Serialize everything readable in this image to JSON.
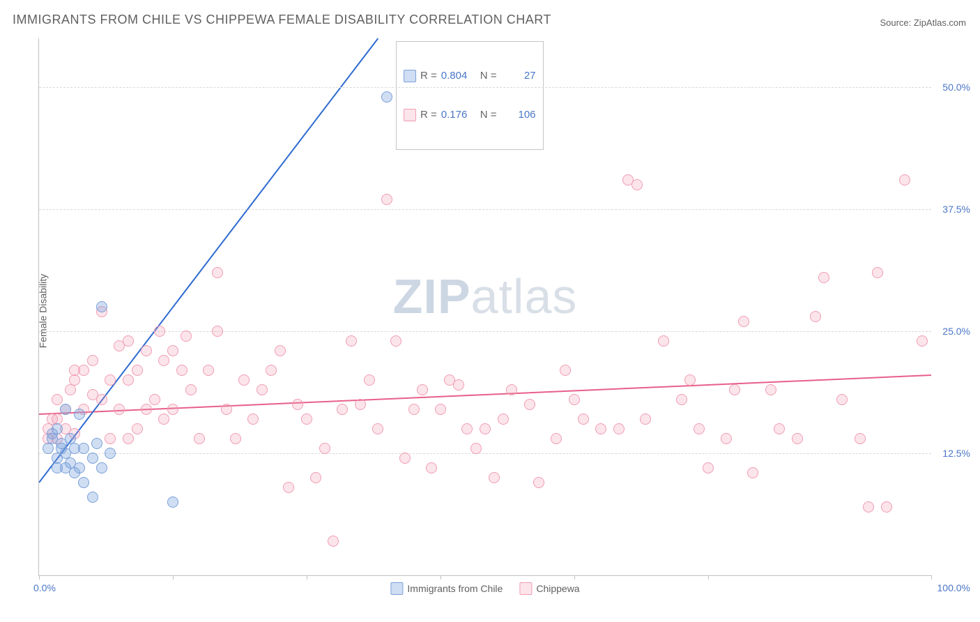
{
  "title": "IMMIGRANTS FROM CHILE VS CHIPPEWA FEMALE DISABILITY CORRELATION CHART",
  "source_label": "Source: ",
  "source_name": "ZipAtlas.com",
  "ylabel": "Female Disability",
  "watermark_a": "ZIP",
  "watermark_b": "atlas",
  "chart": {
    "type": "scatter",
    "xlim": [
      0,
      100
    ],
    "ylim": [
      0,
      55
    ],
    "x_min_label": "0.0%",
    "x_max_label": "100.0%",
    "y_ticks": [
      12.5,
      25.0,
      37.5,
      50.0
    ],
    "y_tick_labels": [
      "12.5%",
      "25.0%",
      "37.5%",
      "50.0%"
    ],
    "background_color": "#ffffff",
    "grid_color": "#d8d8d8",
    "series": [
      {
        "name": "Immigrants from Chile",
        "r": "0.804",
        "n": "27",
        "color_fill": "rgba(120,160,220,0.35)",
        "color_stroke": "#7aa0d8",
        "line_color": "#2e6bd0",
        "regression": {
          "x1": 0,
          "y1": 9.5,
          "x2": 38,
          "y2": 55
        },
        "points": [
          [
            1,
            13
          ],
          [
            1.5,
            14
          ],
          [
            1.5,
            14.5
          ],
          [
            2,
            11
          ],
          [
            2,
            12
          ],
          [
            2,
            15
          ],
          [
            2.5,
            13
          ],
          [
            2.5,
            13.5
          ],
          [
            3,
            11
          ],
          [
            3,
            12.5
          ],
          [
            3,
            17
          ],
          [
            3.5,
            11.5
          ],
          [
            3.5,
            14
          ],
          [
            4,
            10.5
          ],
          [
            4,
            13
          ],
          [
            4.5,
            11
          ],
          [
            4.5,
            16.5
          ],
          [
            5,
            9.5
          ],
          [
            5,
            13
          ],
          [
            6,
            8
          ],
          [
            6,
            12
          ],
          [
            6.5,
            13.5
          ],
          [
            7,
            11
          ],
          [
            7,
            27.5
          ],
          [
            8,
            12.5
          ],
          [
            15,
            7.5
          ],
          [
            39,
            49
          ]
        ]
      },
      {
        "name": "Chippewa",
        "r": "0.176",
        "n": "106",
        "color_fill": "rgba(240,150,175,0.25)",
        "color_stroke": "#f19cb3",
        "line_color": "#e85f8a",
        "regression": {
          "x1": 0,
          "y1": 16.5,
          "x2": 100,
          "y2": 20.5
        },
        "points": [
          [
            1,
            14
          ],
          [
            1,
            15
          ],
          [
            1.5,
            16
          ],
          [
            2,
            14
          ],
          [
            2,
            16
          ],
          [
            2,
            18
          ],
          [
            3,
            15
          ],
          [
            3,
            17
          ],
          [
            3.5,
            19
          ],
          [
            4,
            14.5
          ],
          [
            4,
            20
          ],
          [
            4,
            21
          ],
          [
            5,
            17
          ],
          [
            5,
            21
          ],
          [
            6,
            18.5
          ],
          [
            6,
            22
          ],
          [
            7,
            18
          ],
          [
            7,
            27
          ],
          [
            8,
            14
          ],
          [
            8,
            20
          ],
          [
            9,
            17
          ],
          [
            9,
            23.5
          ],
          [
            10,
            14
          ],
          [
            10,
            20
          ],
          [
            10,
            24
          ],
          [
            11,
            15
          ],
          [
            11,
            21
          ],
          [
            12,
            17
          ],
          [
            12,
            23
          ],
          [
            13,
            18
          ],
          [
            13.5,
            25
          ],
          [
            14,
            16
          ],
          [
            14,
            22
          ],
          [
            15,
            17
          ],
          [
            15,
            23
          ],
          [
            16,
            21
          ],
          [
            16.5,
            24.5
          ],
          [
            17,
            19
          ],
          [
            18,
            14
          ],
          [
            19,
            21
          ],
          [
            20,
            25
          ],
          [
            20,
            31
          ],
          [
            21,
            17
          ],
          [
            22,
            14
          ],
          [
            23,
            20
          ],
          [
            24,
            16
          ],
          [
            25,
            19
          ],
          [
            26,
            21
          ],
          [
            27,
            23
          ],
          [
            28,
            9
          ],
          [
            29,
            17.5
          ],
          [
            30,
            16
          ],
          [
            31,
            10
          ],
          [
            32,
            13
          ],
          [
            33,
            3.5
          ],
          [
            34,
            17
          ],
          [
            35,
            24
          ],
          [
            36,
            17.5
          ],
          [
            37,
            20
          ],
          [
            38,
            15
          ],
          [
            39,
            38.5
          ],
          [
            40,
            24
          ],
          [
            41,
            12
          ],
          [
            42,
            17
          ],
          [
            43,
            19
          ],
          [
            44,
            11
          ],
          [
            45,
            17
          ],
          [
            46,
            20
          ],
          [
            47,
            19.5
          ],
          [
            48,
            15
          ],
          [
            49,
            13
          ],
          [
            50,
            15
          ],
          [
            51,
            10
          ],
          [
            52,
            16
          ],
          [
            53,
            19
          ],
          [
            55,
            17.5
          ],
          [
            56,
            9.5
          ],
          [
            58,
            14
          ],
          [
            59,
            21
          ],
          [
            60,
            18
          ],
          [
            61,
            16
          ],
          [
            63,
            15
          ],
          [
            65,
            15
          ],
          [
            66,
            40.5
          ],
          [
            67,
            40
          ],
          [
            68,
            16
          ],
          [
            70,
            24
          ],
          [
            72,
            18
          ],
          [
            73,
            20
          ],
          [
            74,
            15
          ],
          [
            75,
            11
          ],
          [
            77,
            14
          ],
          [
            78,
            19
          ],
          [
            79,
            26
          ],
          [
            80,
            10.5
          ],
          [
            82,
            19
          ],
          [
            83,
            15
          ],
          [
            85,
            14
          ],
          [
            87,
            26.5
          ],
          [
            88,
            30.5
          ],
          [
            90,
            18
          ],
          [
            92,
            14
          ],
          [
            93,
            7
          ],
          [
            94,
            31
          ],
          [
            95,
            7
          ],
          [
            97,
            40.5
          ],
          [
            99,
            24
          ]
        ]
      }
    ]
  },
  "legend": {
    "r_label": "R =",
    "n_label": "N ="
  },
  "x_tick_positions": [
    0,
    15,
    30,
    45,
    60,
    75,
    100
  ]
}
